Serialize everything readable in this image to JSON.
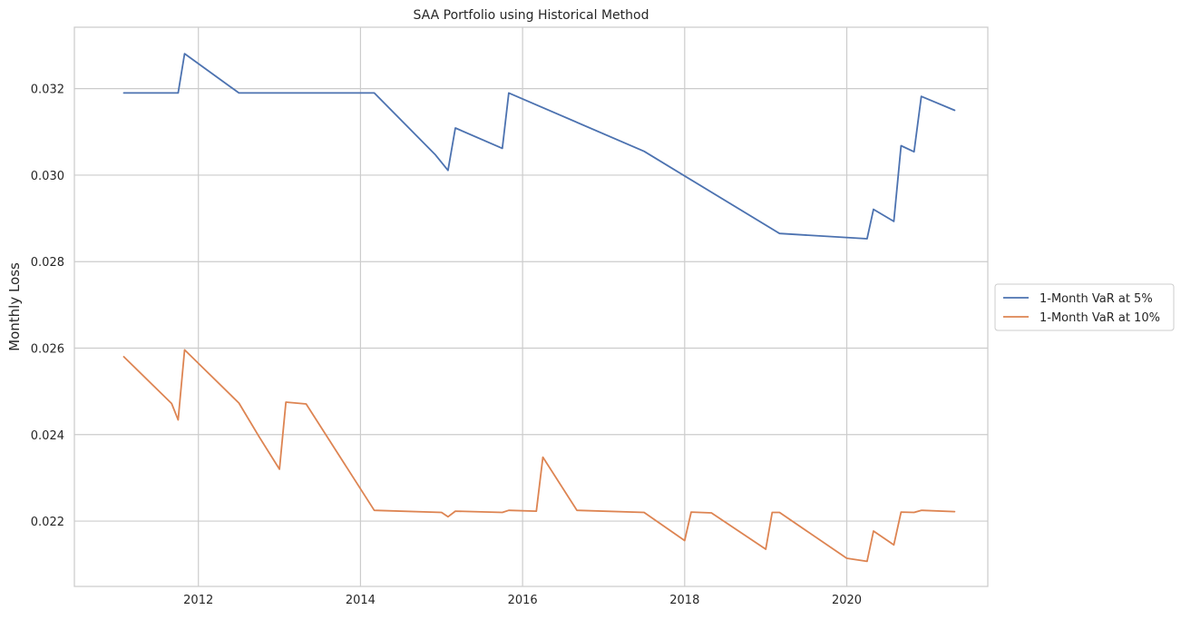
{
  "chart_data": {
    "type": "line",
    "title": "SAA Portfolio using Historical Method",
    "xlabel": "",
    "ylabel": "Monthly Loss",
    "xlim": [
      2010.47,
      2021.74
    ],
    "ylim": [
      0.02049,
      0.03342
    ],
    "x_ticks": [
      "2012",
      "2014",
      "2016",
      "2018",
      "2020"
    ],
    "y_ticks": [
      "0.022",
      "0.024",
      "0.026",
      "0.028",
      "0.030",
      "0.032"
    ],
    "grid": true,
    "legend_position": "center-right outside",
    "series": [
      {
        "name": "1-Month VaR at 5%",
        "color": "#4c72b0",
        "points": [
          [
            2011.08,
            0.0319
          ],
          [
            2011.75,
            0.0319
          ],
          [
            2011.83,
            0.03281
          ],
          [
            2012.5,
            0.0319
          ],
          [
            2014.17,
            0.0319
          ],
          [
            2014.92,
            0.03048
          ],
          [
            2015.08,
            0.03011
          ],
          [
            2015.17,
            0.03109
          ],
          [
            2015.75,
            0.03062
          ],
          [
            2015.83,
            0.0319
          ],
          [
            2017.5,
            0.03055
          ],
          [
            2019.17,
            0.02865
          ],
          [
            2020.25,
            0.02853
          ],
          [
            2020.33,
            0.02921
          ],
          [
            2020.58,
            0.02893
          ],
          [
            2020.67,
            0.03068
          ],
          [
            2020.83,
            0.03054
          ],
          [
            2020.92,
            0.03182
          ],
          [
            2021.33,
            0.0315
          ]
        ]
      },
      {
        "name": "1-Month VaR at 10%",
        "color": "#dd8452",
        "points": [
          [
            2011.08,
            0.0258
          ],
          [
            2011.67,
            0.02472
          ],
          [
            2011.75,
            0.02434
          ],
          [
            2011.83,
            0.02596
          ],
          [
            2012.5,
            0.02473
          ],
          [
            2012.75,
            0.02395
          ],
          [
            2013.0,
            0.0232
          ],
          [
            2013.08,
            0.02475
          ],
          [
            2013.33,
            0.02471
          ],
          [
            2014.17,
            0.02225
          ],
          [
            2015.0,
            0.0222
          ],
          [
            2015.08,
            0.0221
          ],
          [
            2015.17,
            0.02223
          ],
          [
            2015.75,
            0.0222
          ],
          [
            2015.83,
            0.02225
          ],
          [
            2016.17,
            0.02223
          ],
          [
            2016.25,
            0.02348
          ],
          [
            2016.67,
            0.02225
          ],
          [
            2017.5,
            0.0222
          ],
          [
            2018.0,
            0.02155
          ],
          [
            2018.08,
            0.02221
          ],
          [
            2018.33,
            0.02219
          ],
          [
            2019.0,
            0.02135
          ],
          [
            2019.08,
            0.0222
          ],
          [
            2019.17,
            0.0222
          ],
          [
            2020.0,
            0.02114
          ],
          [
            2020.25,
            0.02107
          ],
          [
            2020.33,
            0.02177
          ],
          [
            2020.58,
            0.02145
          ],
          [
            2020.67,
            0.02221
          ],
          [
            2020.83,
            0.0222
          ],
          [
            2020.92,
            0.02225
          ],
          [
            2021.33,
            0.02222
          ]
        ]
      }
    ]
  }
}
